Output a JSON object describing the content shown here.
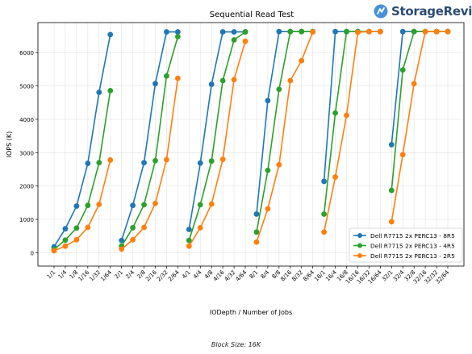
{
  "brand": {
    "name": "StorageReview",
    "logo_color": "#4a90d9"
  },
  "footnote": "Block Size: 16K",
  "chart_data": {
    "type": "line",
    "title": "Sequential Read Test",
    "xlabel": "IODepth / Number of Jobs",
    "ylabel": "IOPS (K)",
    "ylim": [
      -400,
      6900
    ],
    "yticks": [
      0,
      1000,
      2000,
      3000,
      4000,
      5000,
      6000
    ],
    "grid": true,
    "legend_position": "lower-right",
    "categories": [
      "1/1",
      "1/4",
      "1/8",
      "1/16",
      "1/32",
      "1/64",
      "2/1",
      "2/4",
      "2/8",
      "2/16",
      "2/32",
      "2/64",
      "4/1",
      "4/4",
      "4/8",
      "4/16",
      "4/32",
      "4/64",
      "8/1",
      "8/4",
      "8/8",
      "8/16",
      "8/32",
      "8/64",
      "16/1",
      "16/4",
      "16/8",
      "16/16",
      "16/32",
      "16/64",
      "32/1",
      "32/4",
      "32/8",
      "32/16",
      "32/32",
      "32/64"
    ],
    "groups": 6,
    "group_size": 6,
    "series": [
      {
        "name": "Dell R7715 2x PERC13 - 8R5",
        "color": "#1f77b4",
        "values": [
          180,
          720,
          1400,
          2680,
          4810,
          6540,
          370,
          1420,
          2700,
          5070,
          6620,
          6620,
          700,
          2690,
          5050,
          6620,
          6620,
          6620,
          1160,
          4560,
          6630,
          6630,
          6630,
          6630,
          2140,
          6630,
          6630,
          6630,
          6630,
          6630,
          3240,
          6630,
          6630,
          6630,
          6630,
          6630
        ]
      },
      {
        "name": "Dell R7715 2x PERC13 - 4R5",
        "color": "#2ca02c",
        "values": [
          100,
          380,
          740,
          1420,
          2700,
          4860,
          200,
          750,
          1440,
          2760,
          5300,
          6480,
          370,
          1440,
          2750,
          5160,
          6380,
          6620,
          620,
          2470,
          4900,
          6630,
          6630,
          6630,
          1160,
          4190,
          6630,
          6630,
          6630,
          6630,
          1870,
          5480,
          6630,
          6630,
          6630,
          6630
        ]
      },
      {
        "name": "Dell R7715 2x PERC13 - 2R5",
        "color": "#ff7f0e",
        "values": [
          60,
          200,
          390,
          760,
          1450,
          2780,
          110,
          390,
          760,
          1480,
          2790,
          5230,
          200,
          750,
          1460,
          2800,
          5190,
          6340,
          320,
          1320,
          2640,
          5160,
          5760,
          6620,
          620,
          2270,
          4120,
          6610,
          6630,
          6630,
          930,
          2940,
          5070,
          6630,
          6630,
          6630
        ]
      }
    ]
  }
}
